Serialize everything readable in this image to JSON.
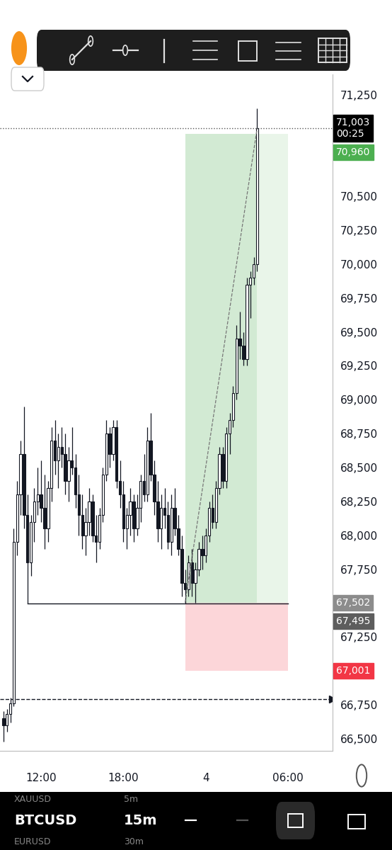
{
  "chart_data": {
    "type": "candlestick",
    "grid": false,
    "categories": [
      null,
      null,
      null,
      null,
      null,
      null,
      null,
      null,
      null,
      null,
      null,
      "12:00",
      null,
      null,
      null,
      null,
      null,
      null,
      null,
      null,
      null,
      null,
      null,
      null,
      null,
      null,
      null,
      null,
      null,
      null,
      null,
      null,
      null,
      null,
      null,
      "18:00",
      null,
      null,
      null,
      null,
      null,
      null,
      null,
      null,
      null,
      null,
      null,
      null,
      null,
      null,
      null,
      null,
      null,
      null,
      null,
      null,
      null,
      null,
      null,
      "4",
      null,
      null,
      null,
      null,
      null,
      null,
      null,
      null,
      null,
      null,
      null,
      null,
      null,
      null,
      null,
      null,
      null,
      null,
      null,
      null,
      null,
      null,
      null,
      "06:00"
    ],
    "open": [
      66650,
      66600,
      66680,
      66760,
      67950,
      68300,
      68600,
      68150,
      67800,
      68100,
      68250,
      68300,
      68200,
      68050,
      68350,
      68700,
      68550,
      68650,
      68600,
      68400,
      68550,
      68500,
      68300,
      68150,
      68000,
      68100,
      68250,
      68000,
      67950,
      68150,
      68450,
      68750,
      68600,
      68800,
      68400,
      68300,
      68050,
      68150,
      68250,
      68050,
      68200,
      68400,
      68300,
      68700,
      68450,
      68250,
      68050,
      68200,
      68150,
      67950,
      68200,
      68050,
      67900,
      67650,
      67600,
      67800,
      67650,
      67750,
      67900,
      67850,
      68000,
      68200,
      68100,
      68350,
      68600,
      68400,
      68750,
      68850,
      69050,
      69450,
      69400,
      69300,
      69850,
      69900,
      70000,
      null,
      null,
      null,
      null,
      null,
      null,
      null,
      null,
      null
    ],
    "high": [
      66700,
      66720,
      66800,
      68050,
      68400,
      68700,
      68950,
      68300,
      68150,
      68350,
      68500,
      68550,
      68450,
      68400,
      68800,
      68850,
      68750,
      68800,
      68750,
      68650,
      68800,
      68600,
      68450,
      68300,
      68200,
      68350,
      68300,
      68150,
      68200,
      68500,
      68850,
      68800,
      68850,
      68850,
      68550,
      68400,
      68200,
      68350,
      68300,
      68300,
      68450,
      68600,
      68800,
      68900,
      68550,
      68400,
      68300,
      68350,
      68250,
      68300,
      68350,
      68150,
      68000,
      67750,
      67850,
      67900,
      67800,
      67950,
      68000,
      68050,
      68250,
      68300,
      68400,
      68650,
      68650,
      68800,
      68900,
      69100,
      69550,
      69650,
      69500,
      69900,
      69950,
      70050,
      71150,
      null,
      null,
      null,
      null,
      null,
      null,
      null,
      null,
      null
    ],
    "low": [
      66480,
      66550,
      66620,
      66740,
      67850,
      68150,
      68050,
      67495,
      67700,
      67950,
      68150,
      68100,
      67900,
      67950,
      68250,
      68450,
      68350,
      68500,
      68300,
      68250,
      68450,
      68200,
      68000,
      67900,
      67850,
      68000,
      67950,
      67800,
      67900,
      68100,
      68400,
      68500,
      68550,
      68350,
      68200,
      67950,
      67900,
      68000,
      67950,
      68000,
      68100,
      68250,
      68250,
      68400,
      68150,
      67950,
      67900,
      68050,
      67900,
      67850,
      68000,
      67850,
      67550,
      67495,
      67550,
      67550,
      67500,
      67700,
      67750,
      67800,
      67950,
      68050,
      68050,
      68300,
      68350,
      68350,
      68600,
      68800,
      69000,
      69300,
      69250,
      69250,
      69600,
      69850,
      69950,
      null,
      null,
      null,
      null,
      null,
      null,
      null,
      null,
      null
    ],
    "close": [
      66600,
      66680,
      66760,
      67950,
      68300,
      68600,
      68150,
      67800,
      68100,
      68250,
      68300,
      68200,
      68050,
      68350,
      68700,
      68550,
      68650,
      68600,
      68400,
      68550,
      68500,
      68300,
      68150,
      68000,
      68100,
      68250,
      68000,
      67950,
      68150,
      68450,
      68750,
      68600,
      68800,
      68400,
      68300,
      68050,
      68150,
      68250,
      68050,
      68200,
      68400,
      68300,
      68700,
      68450,
      68250,
      68050,
      68200,
      68150,
      67950,
      68200,
      68050,
      67900,
      67650,
      67600,
      67800,
      67650,
      67750,
      67900,
      67850,
      68000,
      68200,
      68100,
      68350,
      68600,
      68400,
      68750,
      68850,
      69050,
      69450,
      69400,
      69300,
      69850,
      69900,
      70000,
      71003,
      null,
      null,
      null,
      null,
      null,
      null,
      null,
      null,
      null
    ],
    "xlim": [
      -1,
      96
    ],
    "ylim": [
      66410,
      71400
    ],
    "yticks": [
      {
        "value": 66500,
        "label": "66,500"
      },
      {
        "value": 66750,
        "label": "66,750"
      },
      {
        "value": 67250,
        "label": "67,250"
      },
      {
        "value": 67750,
        "label": "67,750"
      },
      {
        "value": 68000,
        "label": "68,000"
      },
      {
        "value": 68250,
        "label": "68,250"
      },
      {
        "value": 68500,
        "label": "68,500"
      },
      {
        "value": 68750,
        "label": "68,750"
      },
      {
        "value": 69000,
        "label": "69,000"
      },
      {
        "value": 69250,
        "label": "69,250"
      },
      {
        "value": 69500,
        "label": "69,500"
      },
      {
        "value": 69750,
        "label": "69,750"
      },
      {
        "value": 70000,
        "label": "70,000"
      },
      {
        "value": 70250,
        "label": "70,250"
      },
      {
        "value": 70500,
        "label": "70,500"
      },
      {
        "value": 71250,
        "label": "71,250"
      }
    ],
    "position": {
      "start": 53,
      "current": 74,
      "end": 83,
      "entry": 67502,
      "target": 70960,
      "stop": 67001
    },
    "lines": [
      {
        "value": 67495,
        "start": 7,
        "end": 83,
        "line_style": "solid",
        "color": "#131722"
      },
      {
        "value": 66790,
        "line_style": "dashed",
        "color": "#131722",
        "marker": "arrow"
      },
      {
        "value": 71003,
        "line_style": "dotted",
        "color": "#555555"
      }
    ],
    "price_labels": [
      {
        "value": 71003,
        "label": "71,003",
        "countdown": "00:25",
        "color": "#000000"
      },
      {
        "value": 70960,
        "label": "70,960",
        "color": "#4caf50"
      },
      {
        "value": 67502,
        "label": "67,502",
        "color": "#8c8c8c"
      },
      {
        "value": 67495,
        "label": "67,495",
        "color": "#5d5d5d"
      },
      {
        "value": 67001,
        "label": "67,001",
        "color": "#f23645"
      }
    ],
    "watchlist": [
      {
        "symbol": "XAUUSD",
        "interval": "5m",
        "active": false
      },
      {
        "symbol": "BTCUSD",
        "interval": "15m",
        "active": true
      },
      {
        "symbol": "EURUSD",
        "interval": "30m",
        "active": false
      }
    ]
  }
}
